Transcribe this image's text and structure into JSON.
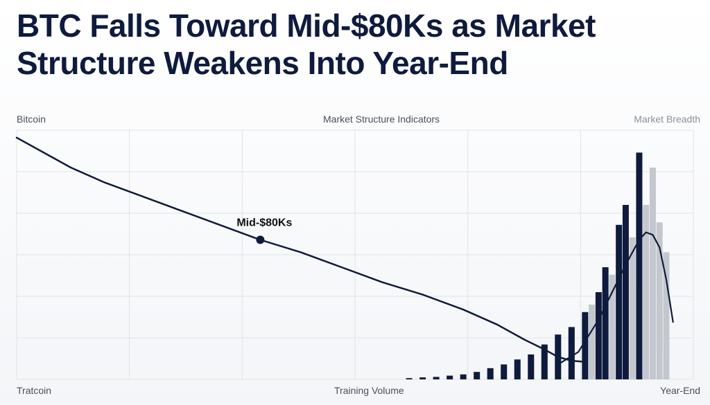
{
  "headline": "BTC Falls Toward Mid-$80Ks as Market Structure Weakens Into Year-End",
  "labels": {
    "top_left": "Bitcoin",
    "top_center": "Market Structure Indicators",
    "top_right": "Market Breadth",
    "bottom_left": "Tratcoin",
    "bottom_center": "Training Volume",
    "bottom_right": "Year-End"
  },
  "colors": {
    "line": "#0f1b3d",
    "bar_dark": "#0f1b3d",
    "bar_light": "#c4c7ce",
    "grid": "#e0e3e8"
  },
  "chart_data": {
    "type": "line",
    "grid": true,
    "line_series": [
      {
        "x": [
          0,
          0.04,
          0.08,
          0.13,
          0.18,
          0.24,
          0.3,
          0.36,
          0.42,
          0.48,
          0.54,
          0.6,
          0.66,
          0.71,
          0.75,
          0.78,
          0.8,
          0.82,
          0.84
        ],
        "y": [
          0.97,
          0.91,
          0.85,
          0.79,
          0.74,
          0.68,
          0.62,
          0.56,
          0.51,
          0.45,
          0.39,
          0.34,
          0.28,
          0.22,
          0.16,
          0.12,
          0.09,
          0.075,
          0.07
        ]
      },
      {
        "x": [
          0.8,
          0.83,
          0.86,
          0.88,
          0.9,
          0.92,
          0.93,
          0.94,
          0.95,
          0.96,
          0.97
        ],
        "y": [
          0.06,
          0.11,
          0.24,
          0.35,
          0.46,
          0.56,
          0.59,
          0.58,
          0.53,
          0.4,
          0.23
        ]
      }
    ],
    "annotation": {
      "label": "Mid-$80Ks",
      "x": 0.36,
      "y": 0.56
    },
    "bars_dark": {
      "x": [
        0.58,
        0.6,
        0.62,
        0.64,
        0.66,
        0.68,
        0.7,
        0.72,
        0.74,
        0.76,
        0.78,
        0.8,
        0.82,
        0.84,
        0.86,
        0.87,
        0.89,
        0.9,
        0.92
      ],
      "values": [
        0.005,
        0.008,
        0.01,
        0.015,
        0.02,
        0.03,
        0.045,
        0.06,
        0.08,
        0.1,
        0.14,
        0.18,
        0.21,
        0.27,
        0.35,
        0.45,
        0.62,
        0.7,
        0.91
      ]
    },
    "bars_light": {
      "x": [
        0.7,
        0.72,
        0.74,
        0.76,
        0.78,
        0.8,
        0.82,
        0.84,
        0.85,
        0.87,
        0.88,
        0.9,
        0.91,
        0.93,
        0.94,
        0.95,
        0.96
      ],
      "values": [
        0.03,
        0.05,
        0.07,
        0.09,
        0.12,
        0.15,
        0.2,
        0.25,
        0.3,
        0.35,
        0.42,
        0.5,
        0.57,
        0.7,
        0.85,
        0.63,
        0.51
      ]
    }
  }
}
